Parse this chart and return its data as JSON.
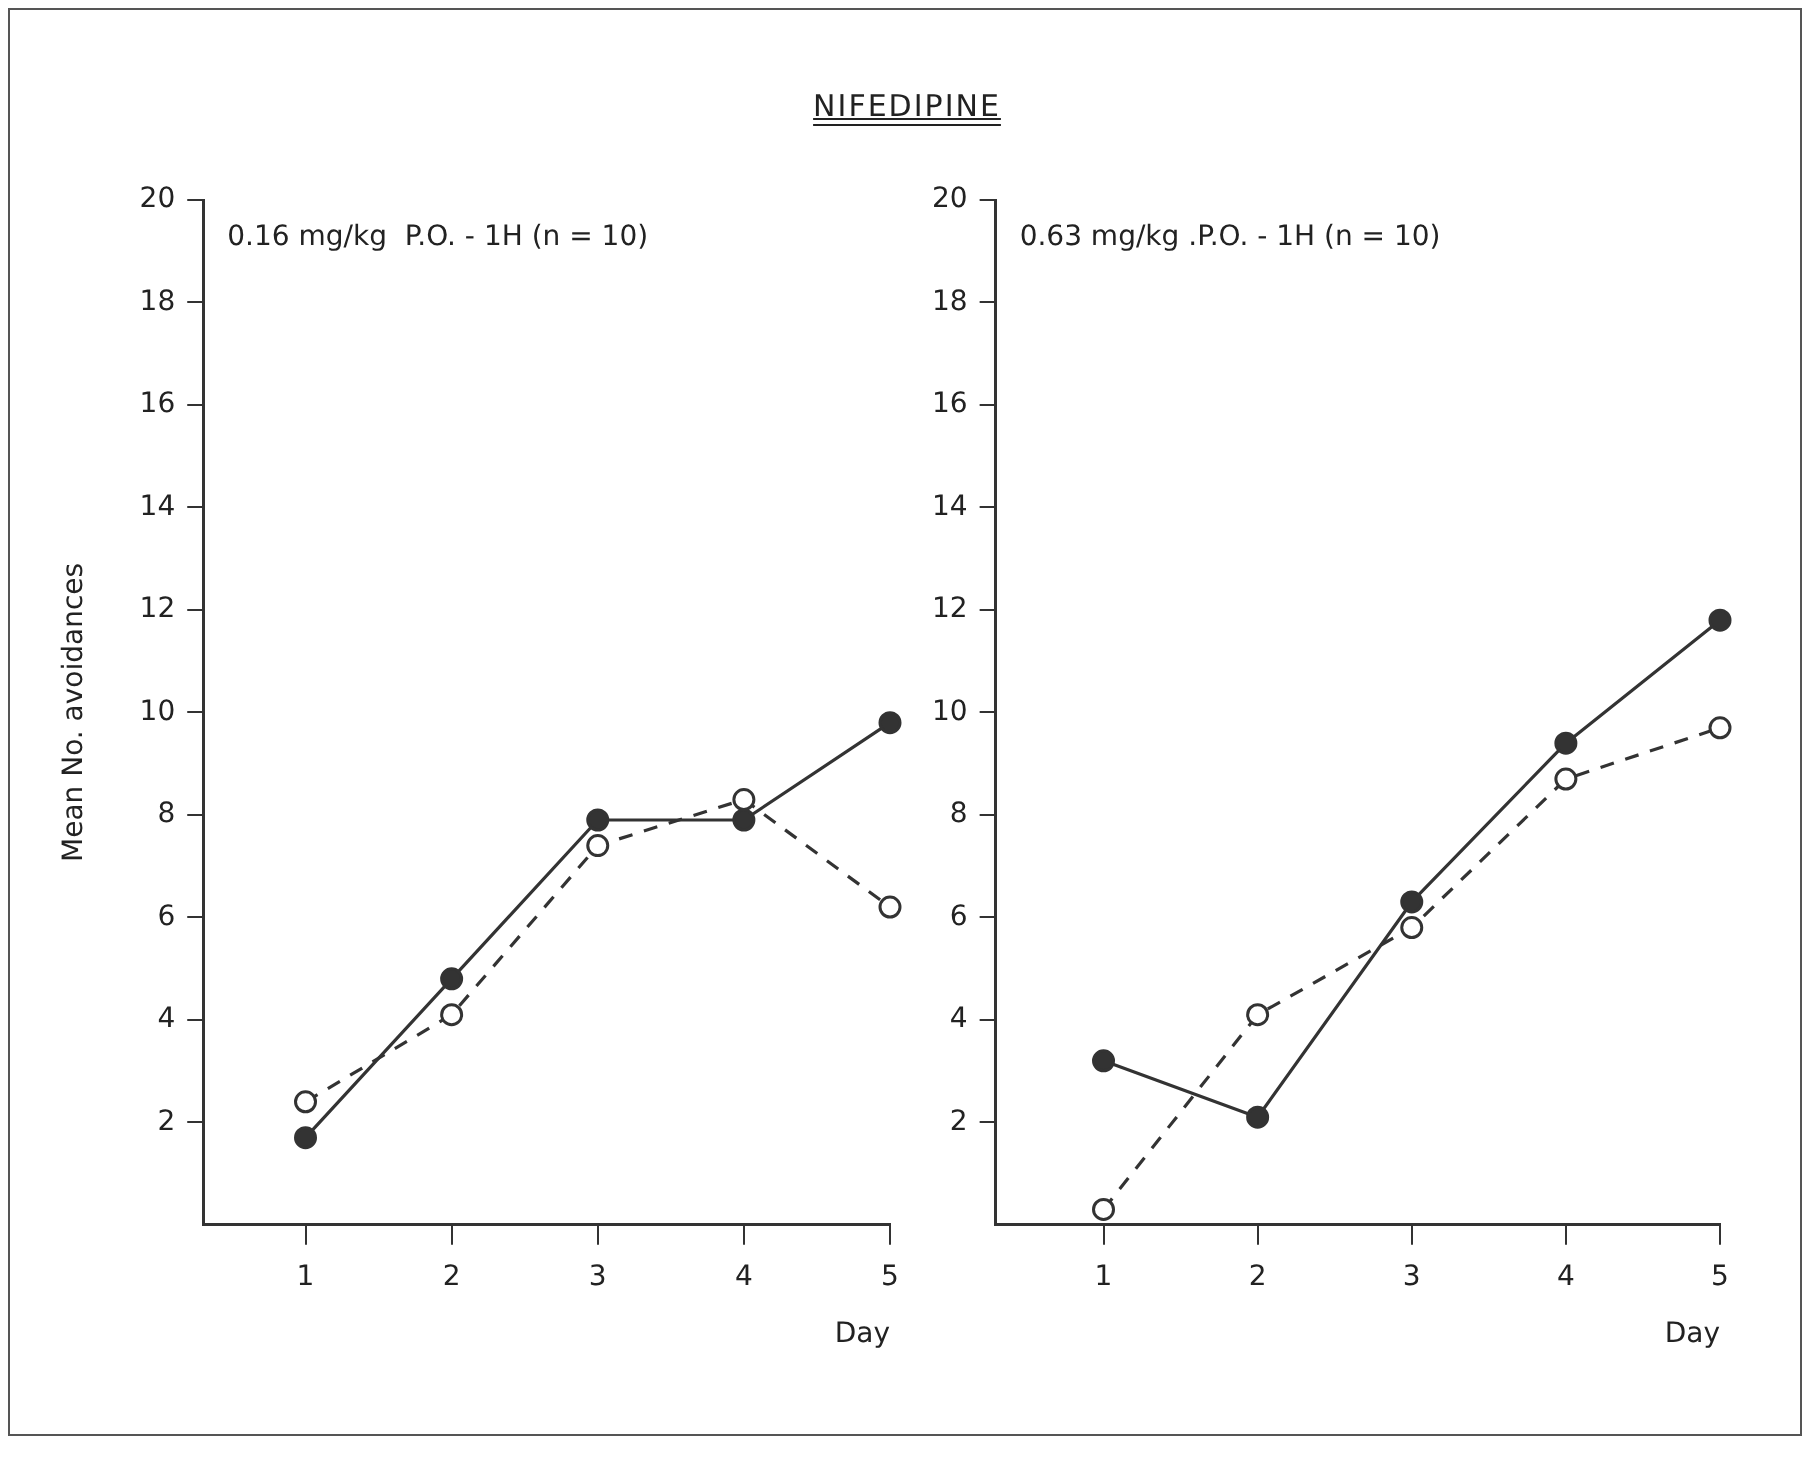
{
  "chart_data": [
    {
      "type": "line",
      "title": "NIFEDIPINE",
      "annotations": [
        "0.16 mg/kg  P.O. - 1H (n = 10)"
      ],
      "xlabel": "Day",
      "ylabel": "Mean No. avoidances",
      "x": [
        1,
        2,
        3,
        4,
        5
      ],
      "xlim": [
        0.3,
        5
      ],
      "xticks": [
        1,
        2,
        3,
        4,
        5
      ],
      "ylim": [
        0,
        20
      ],
      "yticks": [
        2,
        4,
        6,
        8,
        10,
        12,
        14,
        16,
        18,
        20
      ],
      "grid": false,
      "legend": false,
      "marker": "circle",
      "series": [
        {
          "color": "#333333",
          "line_style": "solid",
          "values": [
            1.7,
            4.8,
            7.9,
            7.9,
            9.8
          ]
        },
        {
          "color": "#333333",
          "line_style": "dashed",
          "values": [
            2.4,
            4.1,
            7.4,
            8.3,
            6.2
          ]
        }
      ]
    },
    {
      "type": "line",
      "annotations": [
        "0.63 mg/kg .P.O. - 1H (n = 10)"
      ],
      "xlabel": "Day",
      "x": [
        1,
        2,
        3,
        4,
        5
      ],
      "xlim": [
        0.3,
        5
      ],
      "xticks": [
        1,
        2,
        3,
        4,
        5
      ],
      "ylim": [
        0,
        20
      ],
      "yticks": [
        2,
        4,
        6,
        8,
        10,
        12,
        14,
        16,
        18,
        20
      ],
      "grid": false,
      "legend": false,
      "marker": "circle",
      "series": [
        {
          "color": "#333333",
          "line_style": "solid",
          "values": [
            3.2,
            2.1,
            6.3,
            9.4,
            11.8
          ]
        },
        {
          "color": "#333333",
          "line_style": "dashed",
          "values": [
            0.3,
            4.1,
            5.8,
            8.7,
            9.7
          ]
        }
      ]
    }
  ]
}
